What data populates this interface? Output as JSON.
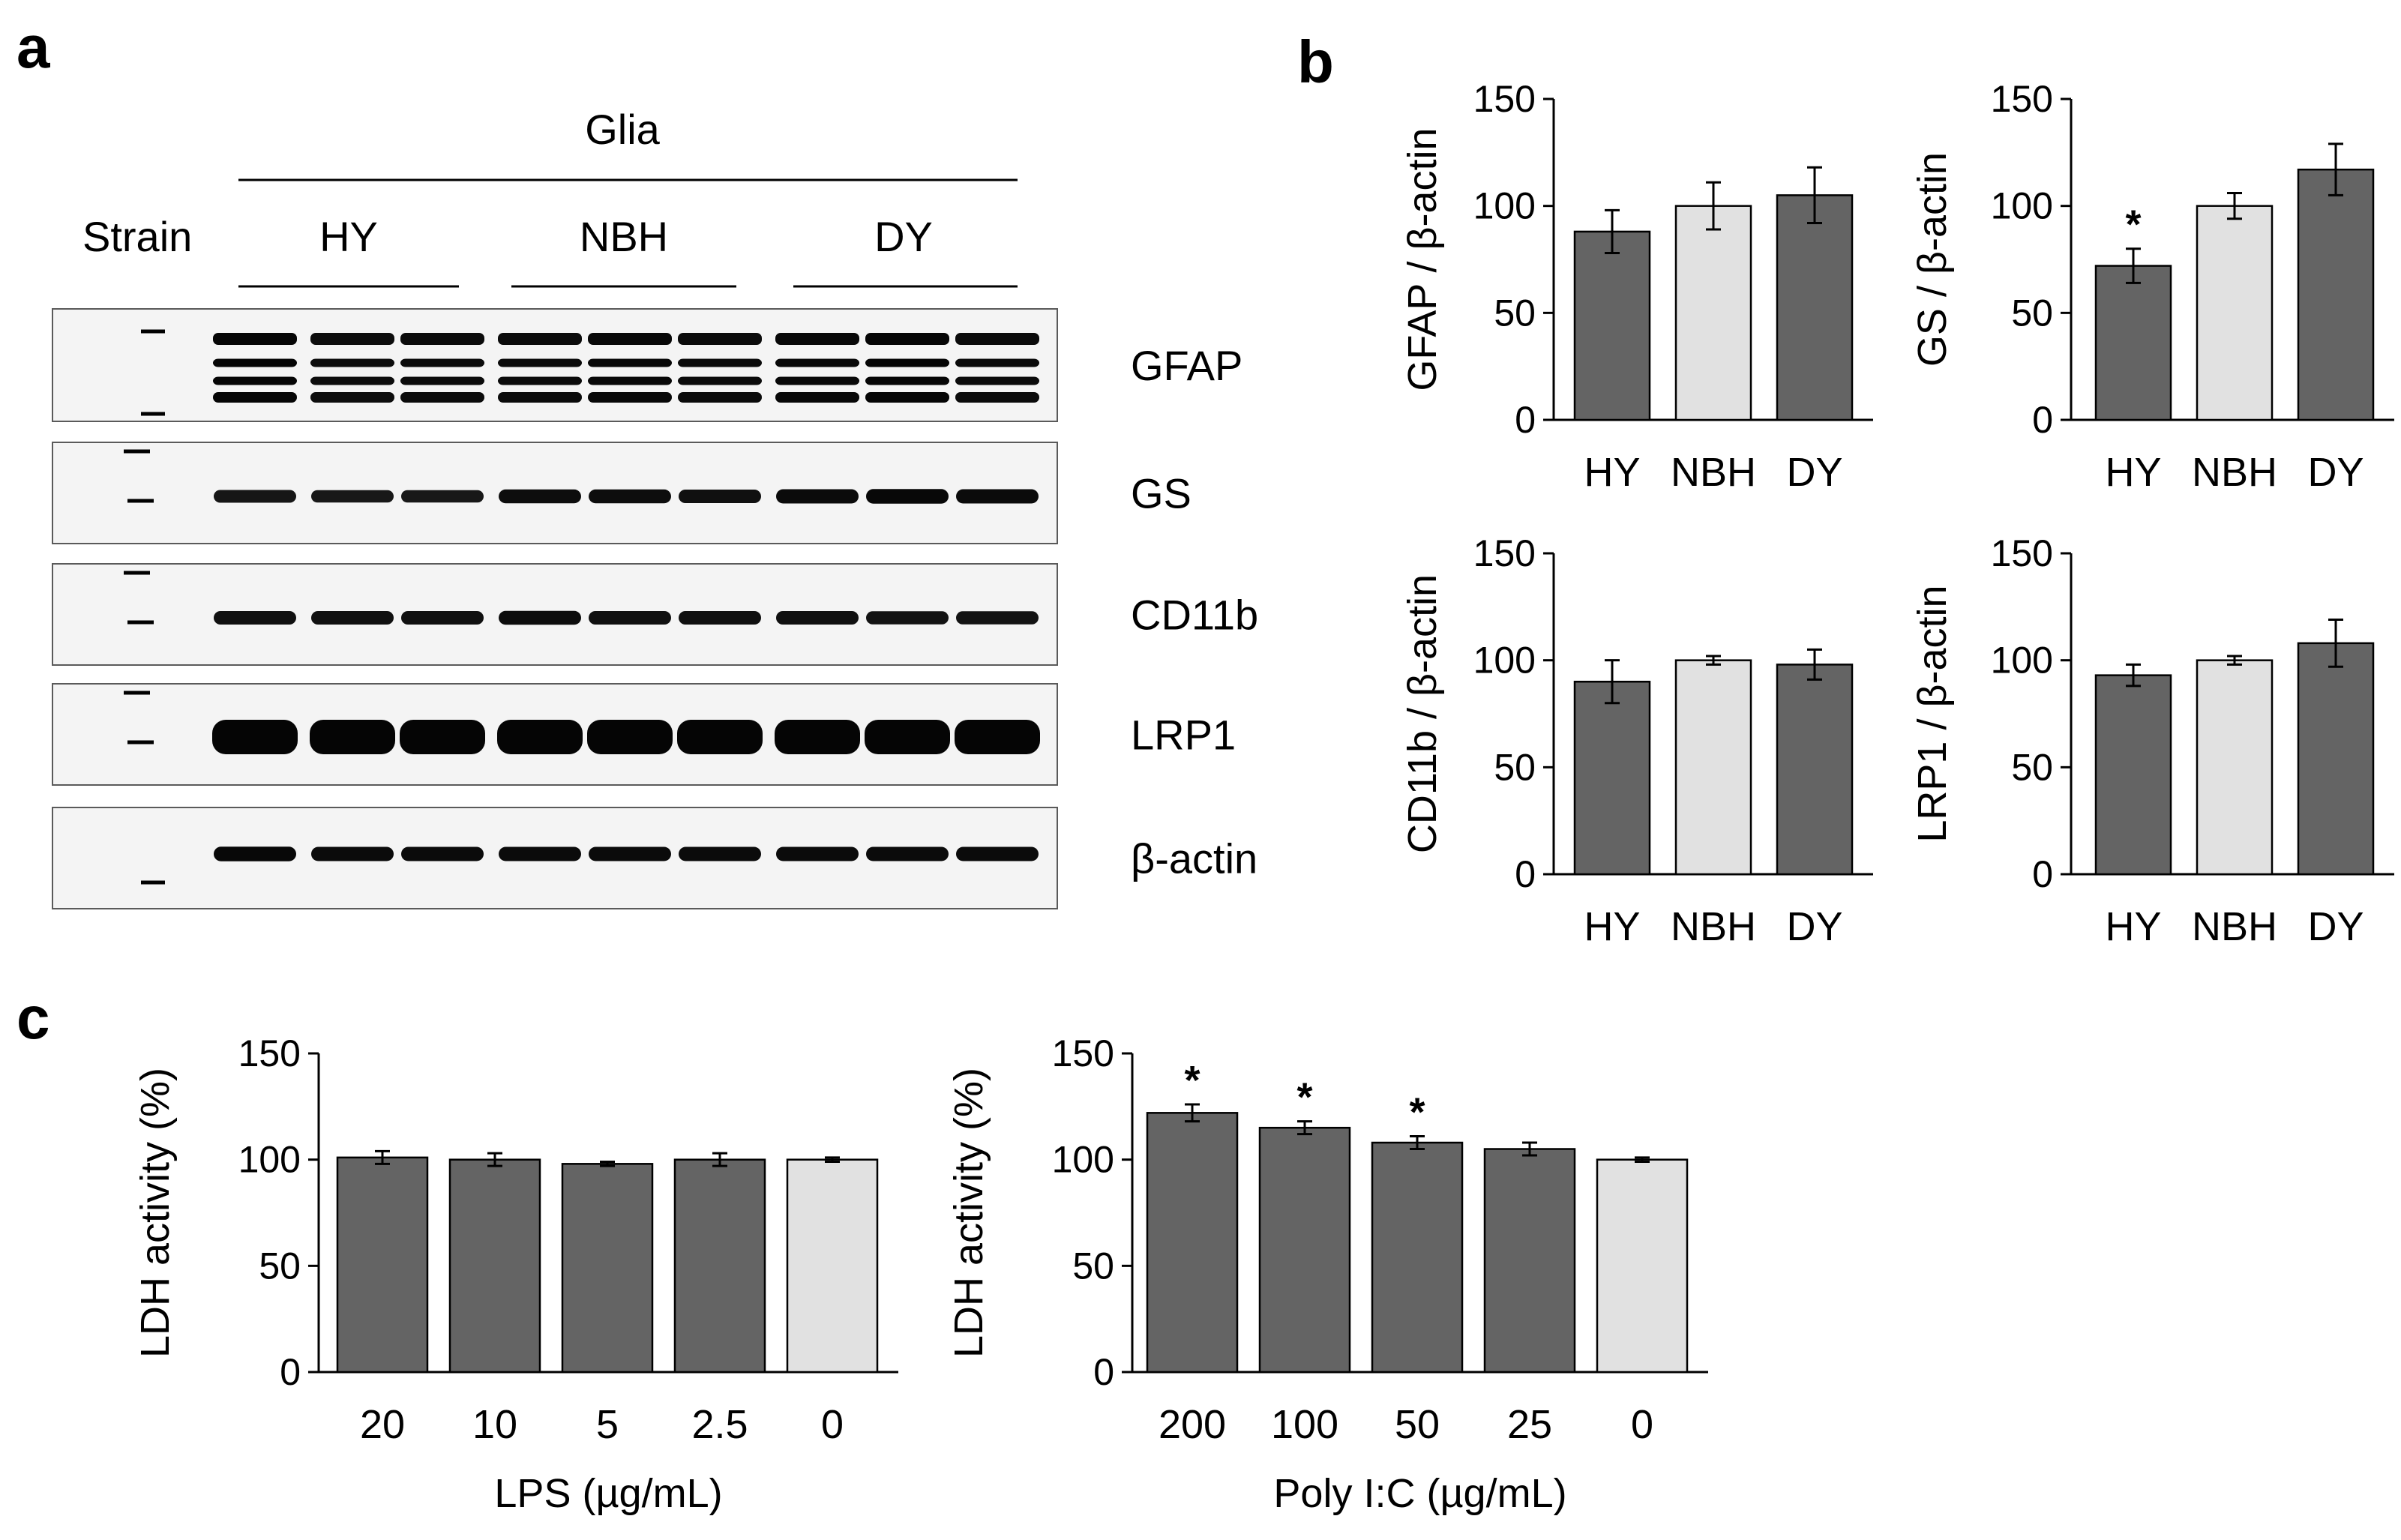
{
  "panels": {
    "a": "a",
    "b": "b",
    "c": "c"
  },
  "blot": {
    "group_label": "Glia",
    "strain_label": "Strain",
    "strains": [
      "HY",
      "NBH",
      "DY"
    ],
    "lanes_per_strain": 3,
    "rows": [
      {
        "label": "GFAP",
        "kind": "multi",
        "intensity": [
          1.0,
          0.85,
          0.9,
          0.9,
          0.95,
          0.9,
          0.95,
          1.0,
          0.9
        ]
      },
      {
        "label": "GS",
        "kind": "single",
        "intensity": [
          0.7,
          0.65,
          0.65,
          0.85,
          0.85,
          0.8,
          0.9,
          0.95,
          0.9
        ]
      },
      {
        "label": "CD11b",
        "kind": "single",
        "intensity": [
          0.8,
          0.8,
          0.8,
          0.85,
          0.8,
          0.8,
          0.8,
          0.75,
          0.75
        ]
      },
      {
        "label": "LRP1",
        "kind": "thick",
        "intensity": [
          1.0,
          1.0,
          1.0,
          1.0,
          1.0,
          1.0,
          1.0,
          1.0,
          1.0
        ]
      },
      {
        "label": "β-actin",
        "kind": "single",
        "intensity": [
          0.95,
          0.9,
          0.9,
          0.9,
          0.9,
          0.9,
          0.9,
          0.9,
          0.9
        ]
      }
    ]
  },
  "colors": {
    "dark": "#646464",
    "light": "#e1e1e1",
    "border": "#000000"
  },
  "chart_data": [
    {
      "type": "bar",
      "panel": "b",
      "ylabel": "GFAP / β-actin",
      "xlabel": "",
      "categories": [
        "HY",
        "NBH",
        "DY"
      ],
      "values": [
        88,
        100,
        105
      ],
      "errors": [
        10,
        11,
        13
      ],
      "ylim": [
        0,
        150
      ],
      "yticks": [
        0,
        50,
        100,
        150
      ],
      "colors": [
        "dark",
        "light",
        "dark"
      ],
      "annotations": [
        "",
        "",
        ""
      ]
    },
    {
      "type": "bar",
      "panel": "b",
      "ylabel": "GS / β-actin",
      "xlabel": "",
      "categories": [
        "HY",
        "NBH",
        "DY"
      ],
      "values": [
        72,
        100,
        117
      ],
      "errors": [
        8,
        6,
        12
      ],
      "ylim": [
        0,
        150
      ],
      "yticks": [
        0,
        50,
        100,
        150
      ],
      "colors": [
        "dark",
        "light",
        "dark"
      ],
      "annotations": [
        "*",
        "",
        ""
      ]
    },
    {
      "type": "bar",
      "panel": "b",
      "ylabel": "CD11b / β-actin",
      "xlabel": "",
      "categories": [
        "HY",
        "NBH",
        "DY"
      ],
      "values": [
        90,
        100,
        98
      ],
      "errors": [
        10,
        2,
        7
      ],
      "ylim": [
        0,
        150
      ],
      "yticks": [
        0,
        50,
        100,
        150
      ],
      "colors": [
        "dark",
        "light",
        "dark"
      ],
      "annotations": [
        "",
        "",
        ""
      ]
    },
    {
      "type": "bar",
      "panel": "b",
      "ylabel": "LRP1 / β-actin",
      "xlabel": "",
      "categories": [
        "HY",
        "NBH",
        "DY"
      ],
      "values": [
        93,
        100,
        108
      ],
      "errors": [
        5,
        2,
        11
      ],
      "ylim": [
        0,
        150
      ],
      "yticks": [
        0,
        50,
        100,
        150
      ],
      "colors": [
        "dark",
        "light",
        "dark"
      ],
      "annotations": [
        "",
        "",
        ""
      ]
    },
    {
      "type": "bar",
      "panel": "c",
      "ylabel": "LDH activity (%)",
      "xlabel": "LPS (µg/mL)",
      "categories": [
        "20",
        "10",
        "5",
        "2.5",
        "0"
      ],
      "values": [
        101,
        100,
        98,
        100,
        100
      ],
      "errors": [
        3,
        3,
        1,
        3,
        1
      ],
      "ylim": [
        0,
        150
      ],
      "yticks": [
        0,
        50,
        100,
        150
      ],
      "colors": [
        "dark",
        "dark",
        "dark",
        "dark",
        "light"
      ],
      "annotations": [
        "",
        "",
        "",
        "",
        ""
      ]
    },
    {
      "type": "bar",
      "panel": "c",
      "ylabel": "LDH activity (%)",
      "xlabel": "Poly I:C (µg/mL)",
      "categories": [
        "200",
        "100",
        "50",
        "25",
        "0"
      ],
      "values": [
        122,
        115,
        108,
        105,
        100
      ],
      "errors": [
        4,
        3,
        3,
        3,
        1
      ],
      "ylim": [
        0,
        150
      ],
      "yticks": [
        0,
        50,
        100,
        150
      ],
      "colors": [
        "dark",
        "dark",
        "dark",
        "dark",
        "light"
      ],
      "annotations": [
        "*",
        "*",
        "*",
        "",
        ""
      ]
    }
  ]
}
